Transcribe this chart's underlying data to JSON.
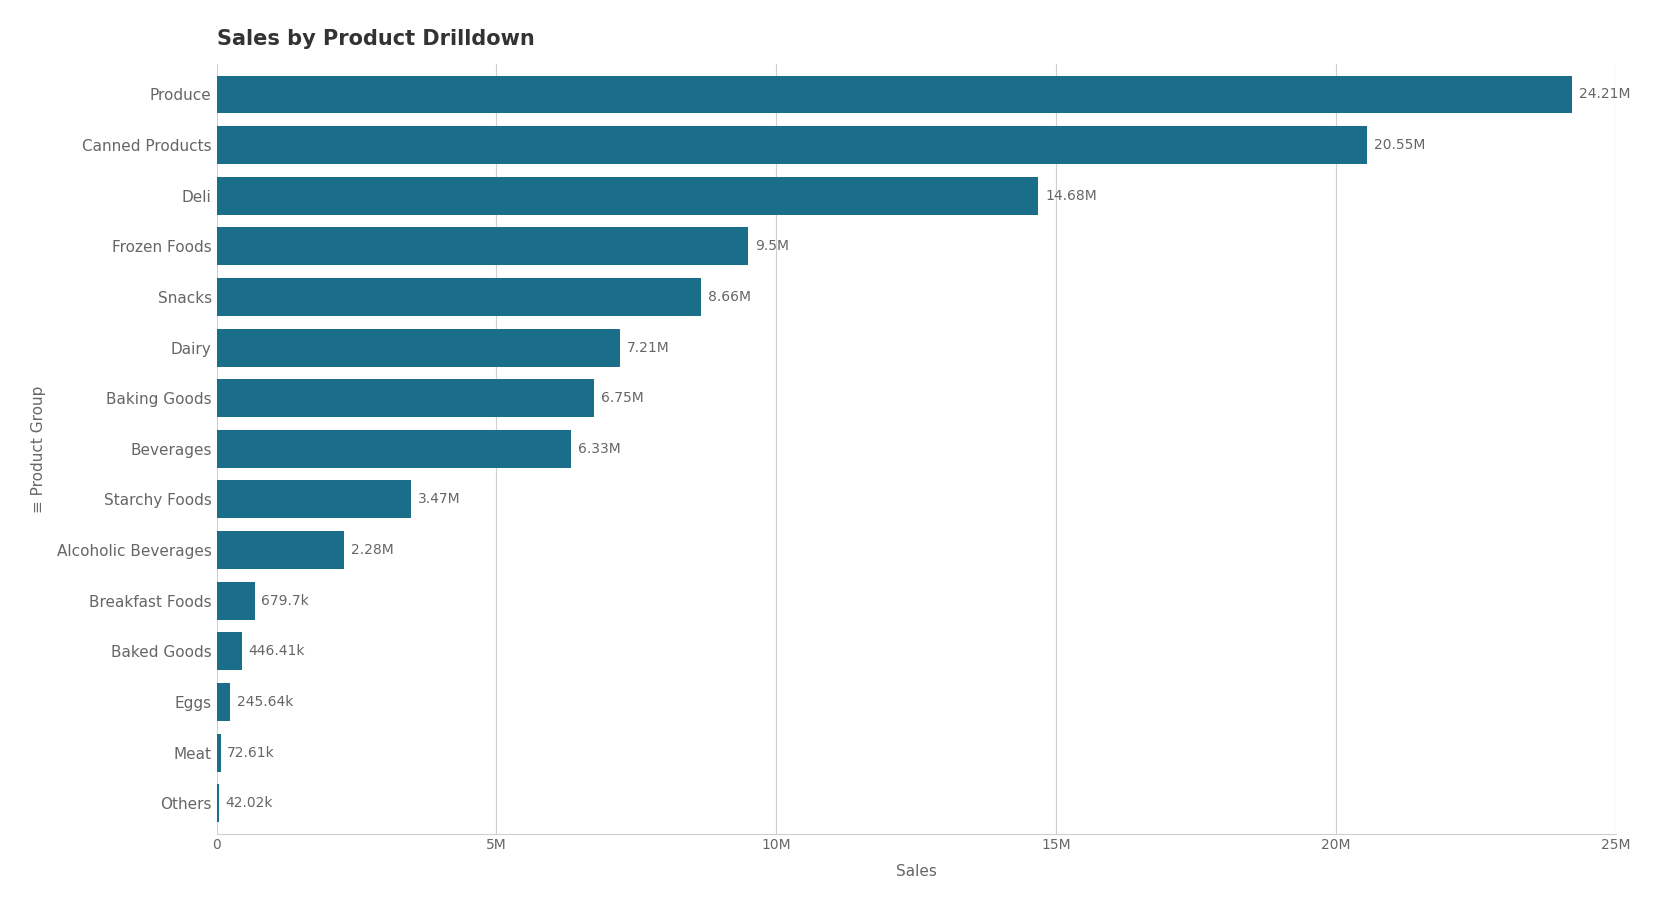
{
  "title": "Sales by Product Drilldown",
  "xlabel": "Sales",
  "ylabel": "≡ Product Group",
  "categories": [
    "Produce",
    "Canned Products",
    "Deli",
    "Frozen Foods",
    "Snacks",
    "Dairy",
    "Baking Goods",
    "Beverages",
    "Starchy Foods",
    "Alcoholic Beverages",
    "Breakfast Foods",
    "Baked Goods",
    "Eggs",
    "Meat",
    "Others"
  ],
  "values": [
    24210000,
    20550000,
    14680000,
    9500000,
    8660000,
    7210000,
    6750000,
    6330000,
    3470000,
    2280000,
    679700,
    446410,
    245640,
    72610,
    42020
  ],
  "labels": [
    "24.21M",
    "20.55M",
    "14.68M",
    "9.5M",
    "8.66M",
    "7.21M",
    "6.75M",
    "6.33M",
    "3.47M",
    "2.28M",
    "679.7k",
    "446.41k",
    "245.64k",
    "72.61k",
    "42.02k"
  ],
  "bar_color": "#1a6e8a",
  "background_color": "#ffffff",
  "grid_color": "#d0d0d0",
  "text_color": "#666666",
  "title_color": "#333333",
  "label_inside_color": "#ffffff",
  "label_outside_color": "#666666",
  "xlim": [
    0,
    25000000
  ],
  "xticks": [
    0,
    5000000,
    10000000,
    15000000,
    20000000,
    25000000
  ],
  "xtick_labels": [
    "0",
    "5M",
    "10M",
    "15M",
    "20M",
    "25M"
  ],
  "title_fontsize": 15,
  "axis_label_fontsize": 11,
  "tick_fontsize": 10,
  "bar_label_fontsize": 10,
  "bar_height": 0.75,
  "inside_label_threshold": 1000000
}
